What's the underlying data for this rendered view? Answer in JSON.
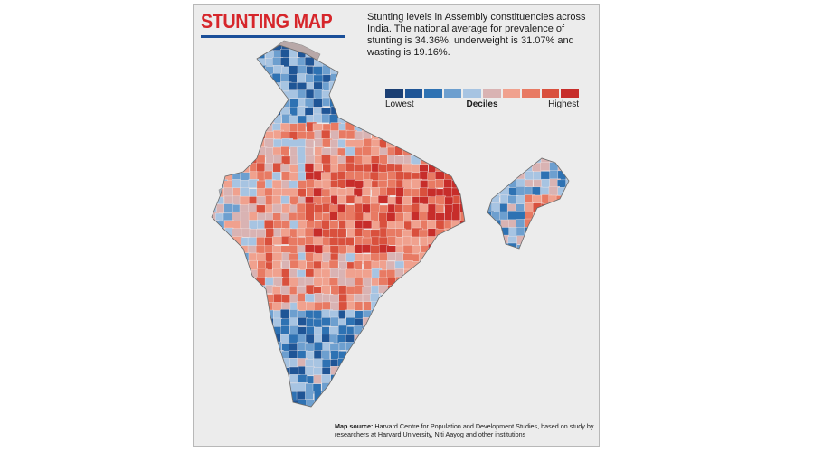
{
  "title": "STUNTING MAP",
  "subtitle": "Stunting levels in Assembly constituencies across India. The national average for prevalence of stunting is 34.36%, underweight is 31.07% and wasting is 19.16%.",
  "legend": {
    "low_label": "Lowest",
    "mid_label": "Deciles",
    "high_label": "Highest",
    "colors": [
      "#1b3f73",
      "#1f5596",
      "#2e72b3",
      "#6d9fcf",
      "#a7c4e2",
      "#d9b3b3",
      "#f0a18e",
      "#e87a63",
      "#d9503d",
      "#c72d2a"
    ]
  },
  "source": {
    "label": "Map source:",
    "text": "Harvard Centre for Population and Development Studies, based on study by researchers at Harvard University, Niti Aayog and other institutions"
  },
  "colors": {
    "title": "#d6262b",
    "title_rule": "#1a4f99",
    "card_background": "#ececec",
    "disputed_region": "#b8a8a8"
  }
}
